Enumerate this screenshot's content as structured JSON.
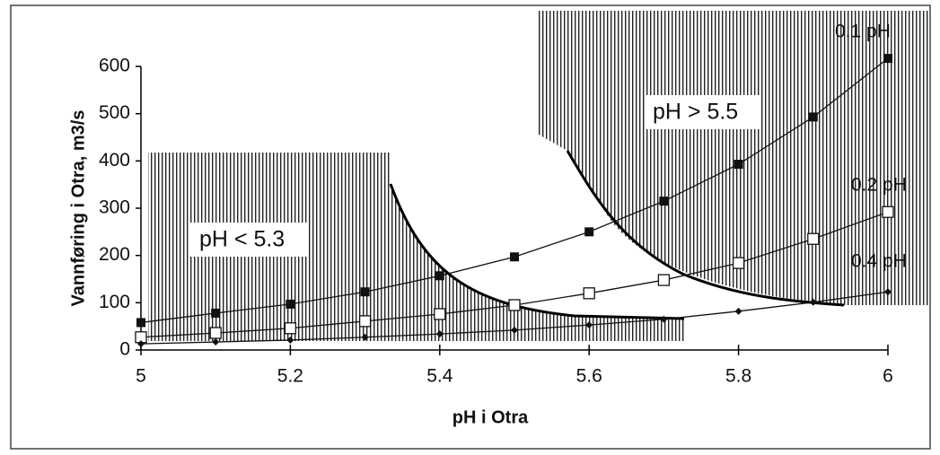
{
  "chart_data": {
    "type": "line",
    "x_label": "pH i Otra",
    "y_label": "Vannføring i Otra, m3/s",
    "annotations": [
      "pH < 5.3",
      "pH > 5.5"
    ],
    "x": [
      5,
      5.1,
      5.2,
      5.3,
      5.4,
      5.5,
      5.6,
      5.7,
      5.8,
      5.9,
      6
    ],
    "xlim": [
      5,
      6
    ],
    "xticks": [
      5,
      5.2,
      5.4,
      5.6,
      5.8,
      6
    ],
    "ylim": [
      0,
      600
    ],
    "yticks": [
      0,
      100,
      200,
      300,
      400,
      500,
      600
    ],
    "series": [
      {
        "name": "0.1 pH",
        "color": "#111111",
        "marker": "filled-square",
        "values": [
          58,
          78,
          97,
          123,
          157,
          197,
          250,
          315,
          393,
          493,
          617
        ]
      },
      {
        "name": "0.2 pH",
        "color": "#111111",
        "marker": "open-square",
        "values": [
          27,
          36,
          46,
          61,
          76,
          95,
          120,
          148,
          184,
          235,
          292
        ]
      },
      {
        "name": "0.4 pH",
        "color": "#111111",
        "marker": "diamond",
        "values": [
          13,
          17,
          21,
          27,
          34,
          42,
          53,
          65,
          82,
          101,
          123
        ]
      }
    ]
  }
}
